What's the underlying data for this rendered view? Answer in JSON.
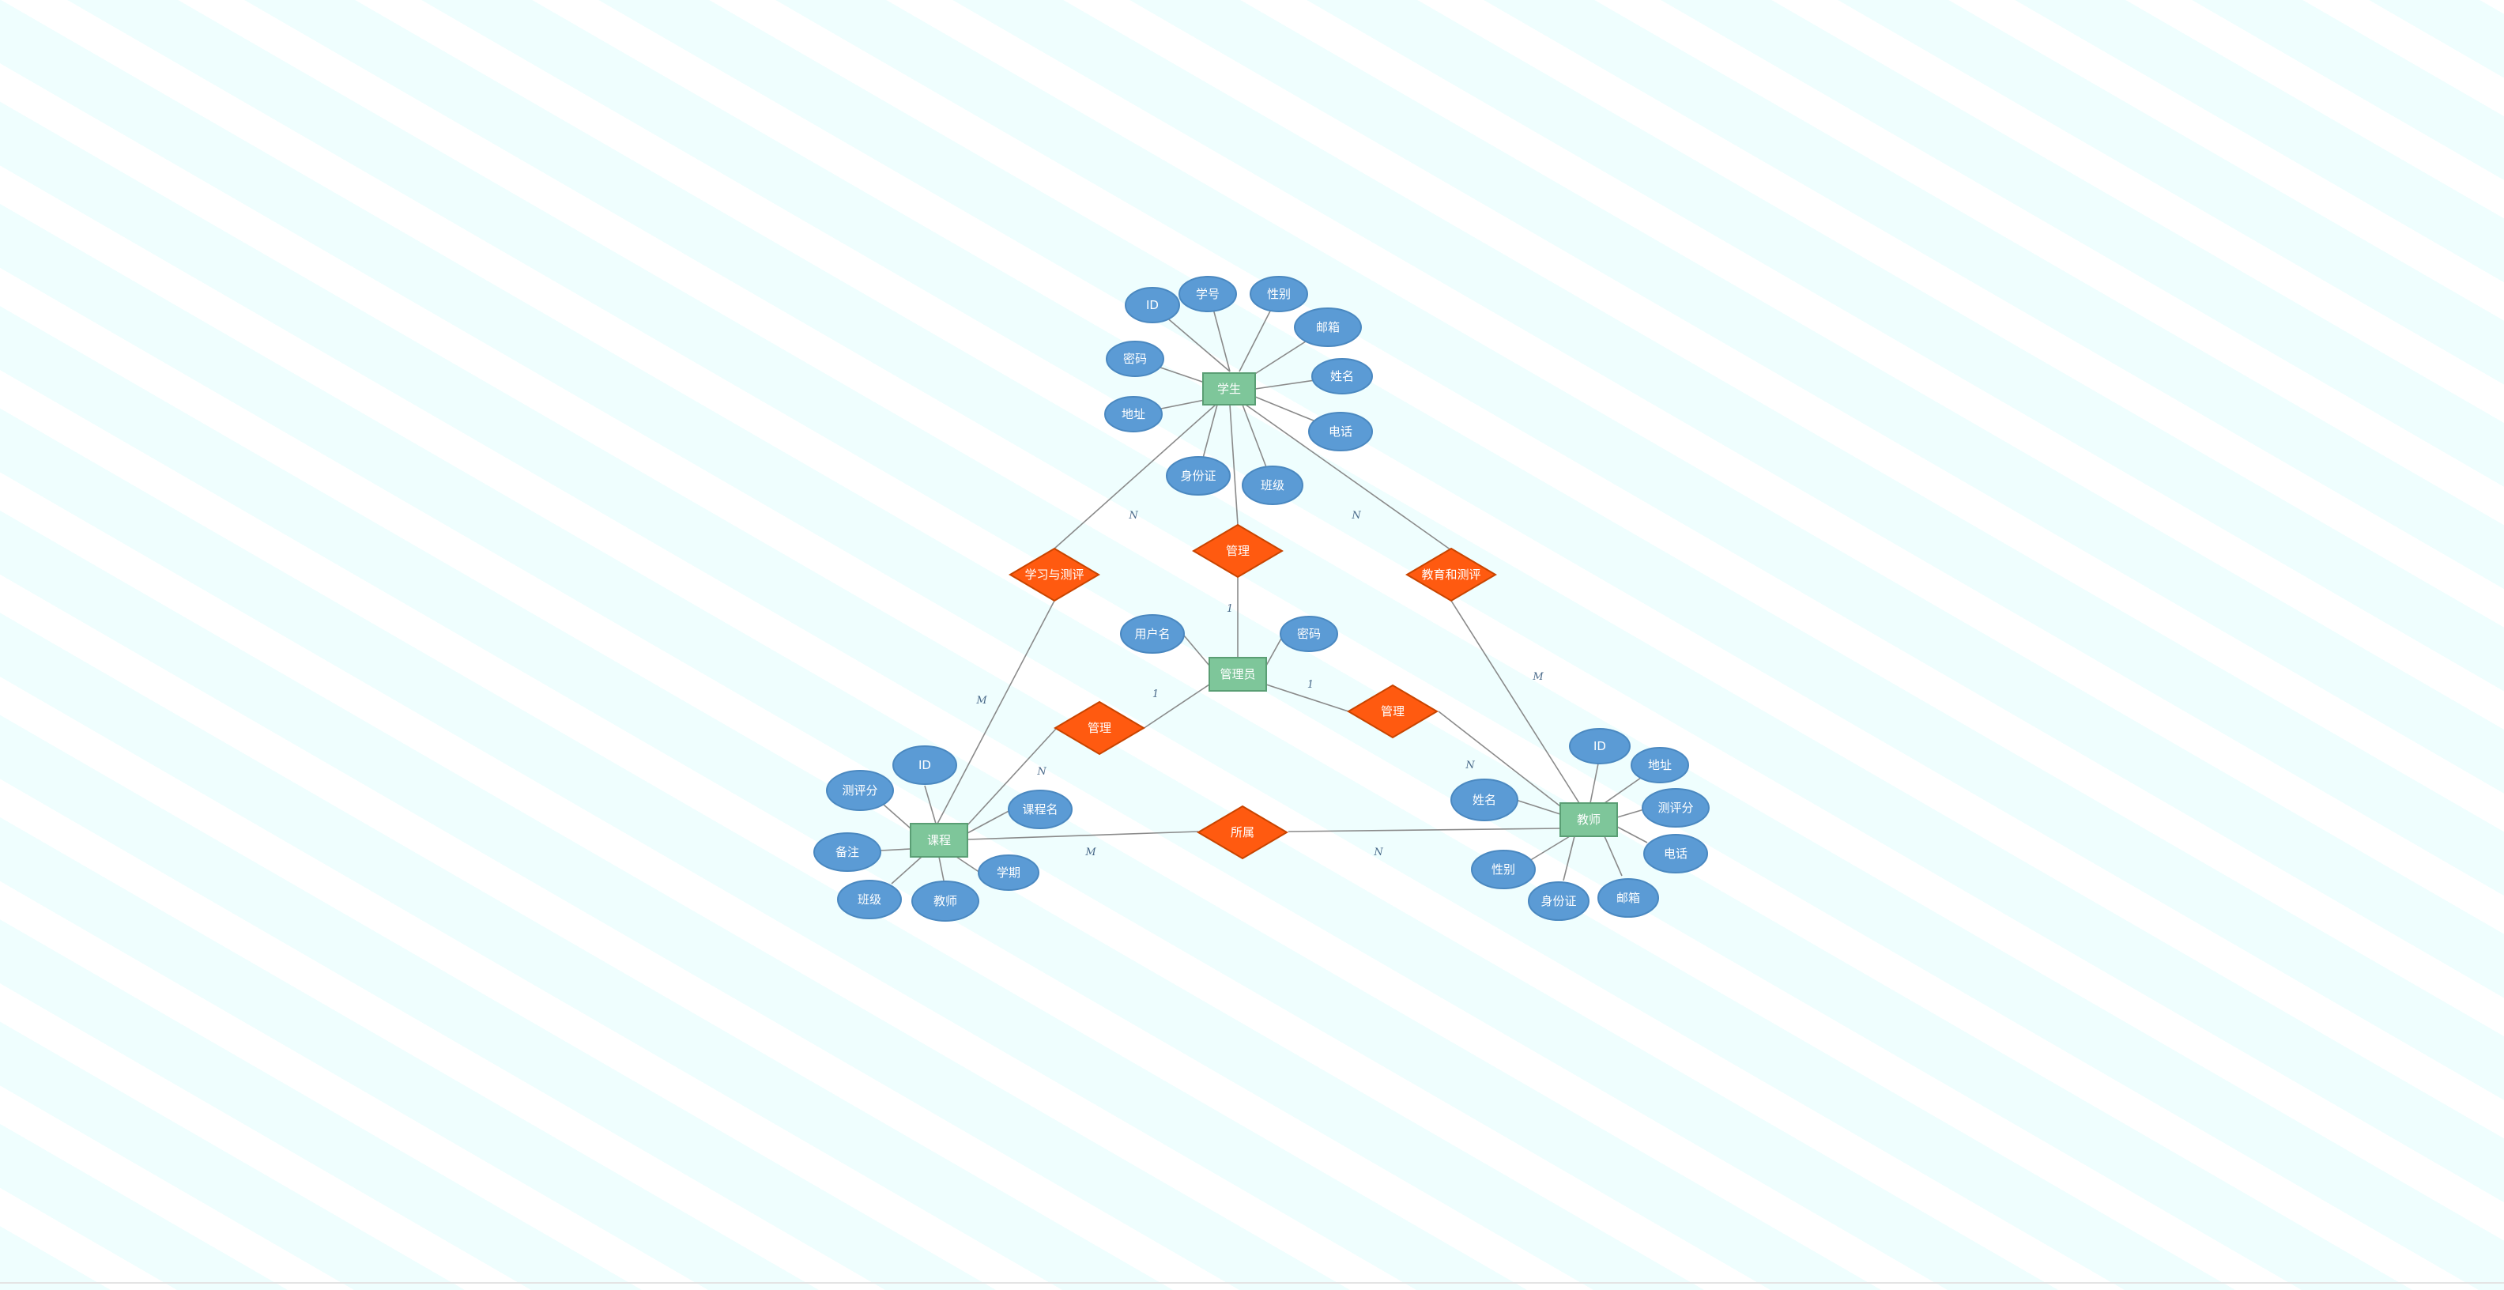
{
  "diagram": {
    "type": "er-diagram",
    "colors": {
      "entity": "#7ec69a",
      "attribute": "#5b9bd5",
      "relationship": "#ff5a10",
      "connector": "#8a8a8a",
      "background": "#f0ffff"
    },
    "entities": [
      {
        "id": "student",
        "label": "学生"
      },
      {
        "id": "admin",
        "label": "管理员"
      },
      {
        "id": "course",
        "label": "课程"
      },
      {
        "id": "teacher",
        "label": "教师"
      }
    ],
    "relationships": [
      {
        "id": "rel-study",
        "label": "学习与测评"
      },
      {
        "id": "rel-manage-student",
        "label": "管理"
      },
      {
        "id": "rel-teach",
        "label": "教育和测评"
      },
      {
        "id": "rel-manage-course",
        "label": "管理"
      },
      {
        "id": "rel-manage-teacher",
        "label": "管理"
      },
      {
        "id": "rel-belong",
        "label": "所属"
      }
    ],
    "attributes": [
      {
        "id": "s-id",
        "label": "ID"
      },
      {
        "id": "s-number",
        "label": "学号"
      },
      {
        "id": "s-gender",
        "label": "性别"
      },
      {
        "id": "s-email",
        "label": "邮箱"
      },
      {
        "id": "s-name",
        "label": "姓名"
      },
      {
        "id": "s-phone",
        "label": "电话"
      },
      {
        "id": "s-class",
        "label": "班级"
      },
      {
        "id": "s-idcard",
        "label": "身份证"
      },
      {
        "id": "s-address",
        "label": "地址"
      },
      {
        "id": "s-password",
        "label": "密码"
      },
      {
        "id": "a-username",
        "label": "用户名"
      },
      {
        "id": "a-password",
        "label": "密码"
      },
      {
        "id": "c-id",
        "label": "ID"
      },
      {
        "id": "c-rating",
        "label": "测评分"
      },
      {
        "id": "c-name",
        "label": "课程名"
      },
      {
        "id": "c-note",
        "label": "备注"
      },
      {
        "id": "c-term",
        "label": "学期"
      },
      {
        "id": "c-class",
        "label": "班级"
      },
      {
        "id": "c-teacher",
        "label": "教师"
      },
      {
        "id": "t-id",
        "label": "ID"
      },
      {
        "id": "t-address",
        "label": "地址"
      },
      {
        "id": "t-name",
        "label": "姓名"
      },
      {
        "id": "t-rating",
        "label": "测评分"
      },
      {
        "id": "t-phone",
        "label": "电话"
      },
      {
        "id": "t-gender",
        "label": "性别"
      },
      {
        "id": "t-idcard",
        "label": "身份证"
      },
      {
        "id": "t-email",
        "label": "邮箱"
      }
    ],
    "cardinalities": [
      {
        "id": "card-student-study",
        "label": "N"
      },
      {
        "id": "card-student-teach",
        "label": "N"
      },
      {
        "id": "card-admin-student",
        "label": "1"
      },
      {
        "id": "card-admin-course",
        "label": "1"
      },
      {
        "id": "card-admin-teacher",
        "label": "1"
      },
      {
        "id": "card-course-study",
        "label": "M"
      },
      {
        "id": "card-course-manage",
        "label": "N"
      },
      {
        "id": "card-teacher-teach",
        "label": "M"
      },
      {
        "id": "card-teacher-manage",
        "label": "N"
      },
      {
        "id": "card-course-belong",
        "label": "M"
      },
      {
        "id": "card-teacher-belong",
        "label": "N"
      }
    ]
  }
}
